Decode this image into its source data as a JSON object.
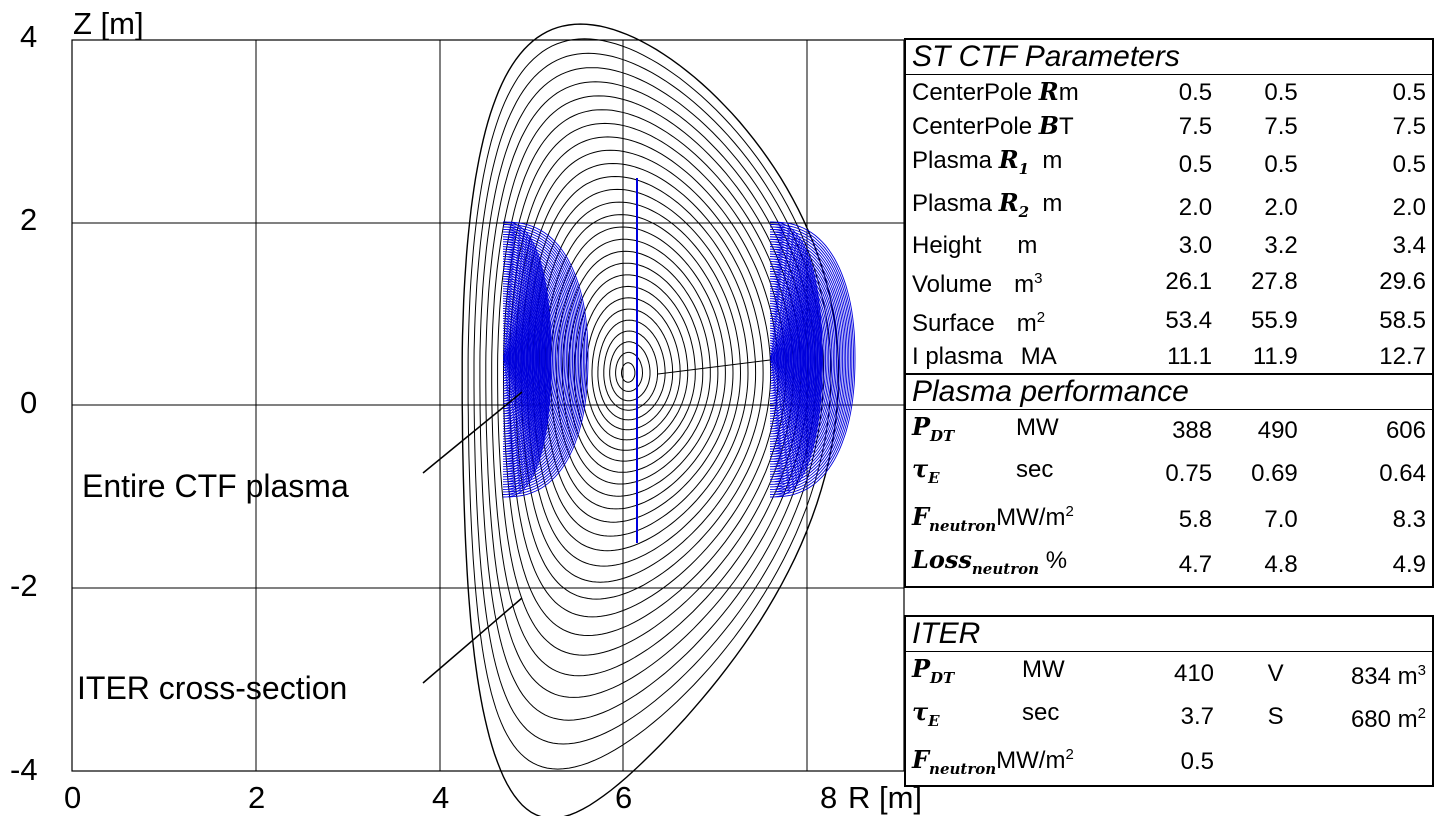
{
  "figure": {
    "y_axis_label": "Z [m]",
    "x_axis_label": "R [m]",
    "x_ticks": [
      "0",
      "2",
      "4",
      "6",
      "8"
    ],
    "y_ticks": [
      "4",
      "2",
      "0",
      "-2",
      "-4"
    ],
    "annotation_ctf": "Entire CTF plasma",
    "annotation_iter": "ITER cross-section",
    "colors": {
      "ctf_plasma": "#0000dd",
      "iter_contours": "#000000",
      "grid": "#000000"
    }
  },
  "ctf_table": {
    "title": "ST CTF Parameters",
    "rows": [
      {
        "sym": "R",
        "pre": "CenterPole ",
        "post": "m",
        "v1": "0.5",
        "v2": "0.5",
        "v3": "0.5"
      },
      {
        "sym": "B",
        "pre": "CenterPole ",
        "post": "T",
        "v1": "7.5",
        "v2": "7.5",
        "v3": "7.5"
      },
      {
        "sym": "R",
        "sub": "1",
        "pre": "Plasma ",
        "post": "  m",
        "v1": "0.5",
        "v2": "0.5",
        "v3": "0.5"
      },
      {
        "sym": "R",
        "sub": "2",
        "pre": "Plasma ",
        "post": "  m",
        "v1": "2.0",
        "v2": "2.0",
        "v3": "2.0"
      },
      {
        "pre": "Height",
        "unit": "m",
        "v1": "3.0",
        "v2": "3.2",
        "v3": "3.4"
      },
      {
        "pre": "Volume",
        "unit": "m",
        "sup": "3",
        "v1": "26.1",
        "v2": "27.8",
        "v3": "29.6"
      },
      {
        "pre": "Surface",
        "unit": "m",
        "sup": "2",
        "v1": "53.4",
        "v2": "55.9",
        "v3": "58.5"
      },
      {
        "pre": "I plasma",
        "unit": "MA",
        "v1": "11.1",
        "v2": "11.9",
        "v3": "12.7"
      }
    ],
    "perf_title": "Plasma performance",
    "perf_rows": [
      {
        "sym": "P",
        "sub": "DT",
        "unit": "MW",
        "v1": "388",
        "v2": "490",
        "v3": "606"
      },
      {
        "sym": "τ",
        "sub": "E",
        "unit": "sec",
        "v1": "0.75",
        "v2": "0.69",
        "v3": "0.64"
      },
      {
        "sym": "F",
        "sub": "neutron",
        "unit": "MW/m",
        "sup": "2",
        "v1": "5.8",
        "v2": "7.0",
        "v3": "8.3"
      },
      {
        "sym": "Loss",
        "sub": "neutron",
        "unit": "%",
        "v1": "4.7",
        "v2": "4.8",
        "v3": "4.9"
      }
    ]
  },
  "iter_table": {
    "title": "ITER",
    "rows": [
      {
        "sym": "P",
        "sub": "DT",
        "unit": "MW",
        "val": "410",
        "k": "V",
        "kv": "834 m",
        "ksup": "3"
      },
      {
        "sym": "τ",
        "sub": "E",
        "unit": "sec",
        "val": "3.7",
        "k": "S",
        "kv": "680 m",
        "ksup": "2"
      },
      {
        "sym": "F",
        "sub": "neutron",
        "unit": "MW/m",
        "sup": "2",
        "val": "0.5",
        "k": "",
        "kv": "",
        "ksup": ""
      }
    ]
  }
}
